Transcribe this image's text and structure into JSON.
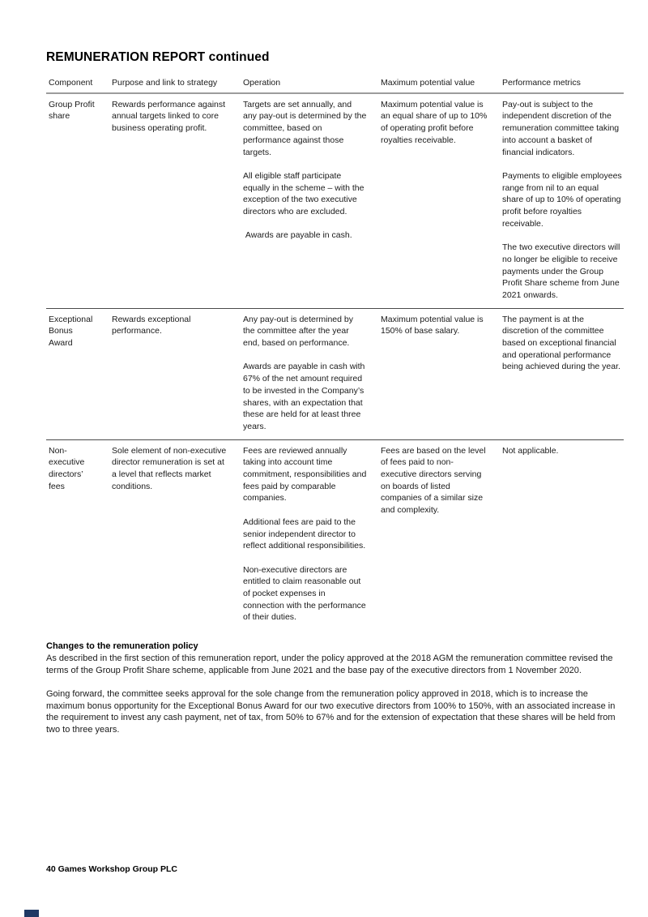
{
  "page": {
    "title": "REMUNERATION REPORT continued",
    "footer": "40 Games Workshop Group PLC",
    "accent_color": "#1f3864"
  },
  "table": {
    "columns": [
      "Component",
      "Purpose and link to strategy",
      "Operation",
      "Maximum potential value",
      "Performance metrics"
    ],
    "rows": [
      {
        "component": "Group Profit\nshare",
        "purpose": [
          "Rewards performance against annual targets linked to core business operating profit."
        ],
        "operation": [
          "Targets are set annually, and any pay-out is determined by the committee, based on performance against those targets.",
          "All eligible staff participate equally in the scheme – with the exception of the two executive directors who are excluded.",
          " Awards are payable in cash."
        ],
        "max_value": [
          "Maximum potential value is an equal share of up to 10% of operating profit before royalties receivable."
        ],
        "metrics": [
          "Pay-out is subject to the independent discretion of the remuneration committee taking into account a basket of financial indicators.",
          "Payments to eligible employees range from nil to an equal share of up to 10% of operating profit before royalties receivable.",
          "The two executive directors will no longer be eligible to receive payments under the Group Profit Share scheme from June 2021 onwards."
        ]
      },
      {
        "component": "Exceptional\nBonus Award",
        "purpose": [
          "Rewards exceptional performance."
        ],
        "operation": [
          "Any pay-out is determined by the committee after the year end, based on performance.",
          "Awards are payable in cash with 67% of the net amount required to be invested in the Company’s shares, with an expectation that these are held for at least three years."
        ],
        "max_value": [
          "Maximum potential value is 150% of base salary."
        ],
        "metrics": [
          "The payment is at the discretion of the committee based on exceptional financial and operational performance being achieved during the year."
        ]
      },
      {
        "component": "Non-\nexecutive\ndirectors’\nfees",
        "purpose": [
          "Sole element of non-executive director remuneration is set at a level that reflects market conditions."
        ],
        "operation": [
          "Fees are reviewed annually taking into account time commitment, responsibilities and fees paid by comparable companies.",
          "Additional fees are paid to the senior independent director to reflect additional responsibilities.",
          "Non-executive directors are entitled to claim reasonable out of pocket expenses in connection with the performance of their duties."
        ],
        "max_value": [
          "Fees are based on the level of fees paid to non-executive directors serving on boards of listed companies of a similar size and complexity."
        ],
        "metrics": [
          "Not applicable."
        ]
      }
    ]
  },
  "sections": [
    {
      "heading": "Changes to the remuneration policy",
      "paragraphs": [
        "As described in the first section of this remuneration report, under the policy approved at the 2018 AGM the remuneration committee revised the terms of the Group Profit Share scheme, applicable from June 2021 and the base pay of the executive directors from 1 November 2020.",
        "Going forward, the committee seeks approval for the sole change from the remuneration policy approved in 2018, which is to increase the maximum bonus opportunity for the Exceptional Bonus Award for our two executive directors from 100% to 150%, with an associated increase in the requirement to invest any cash payment, net of tax, from 50% to 67% and for the extension of expectation that these shares will be held from two to three years."
      ]
    }
  ]
}
